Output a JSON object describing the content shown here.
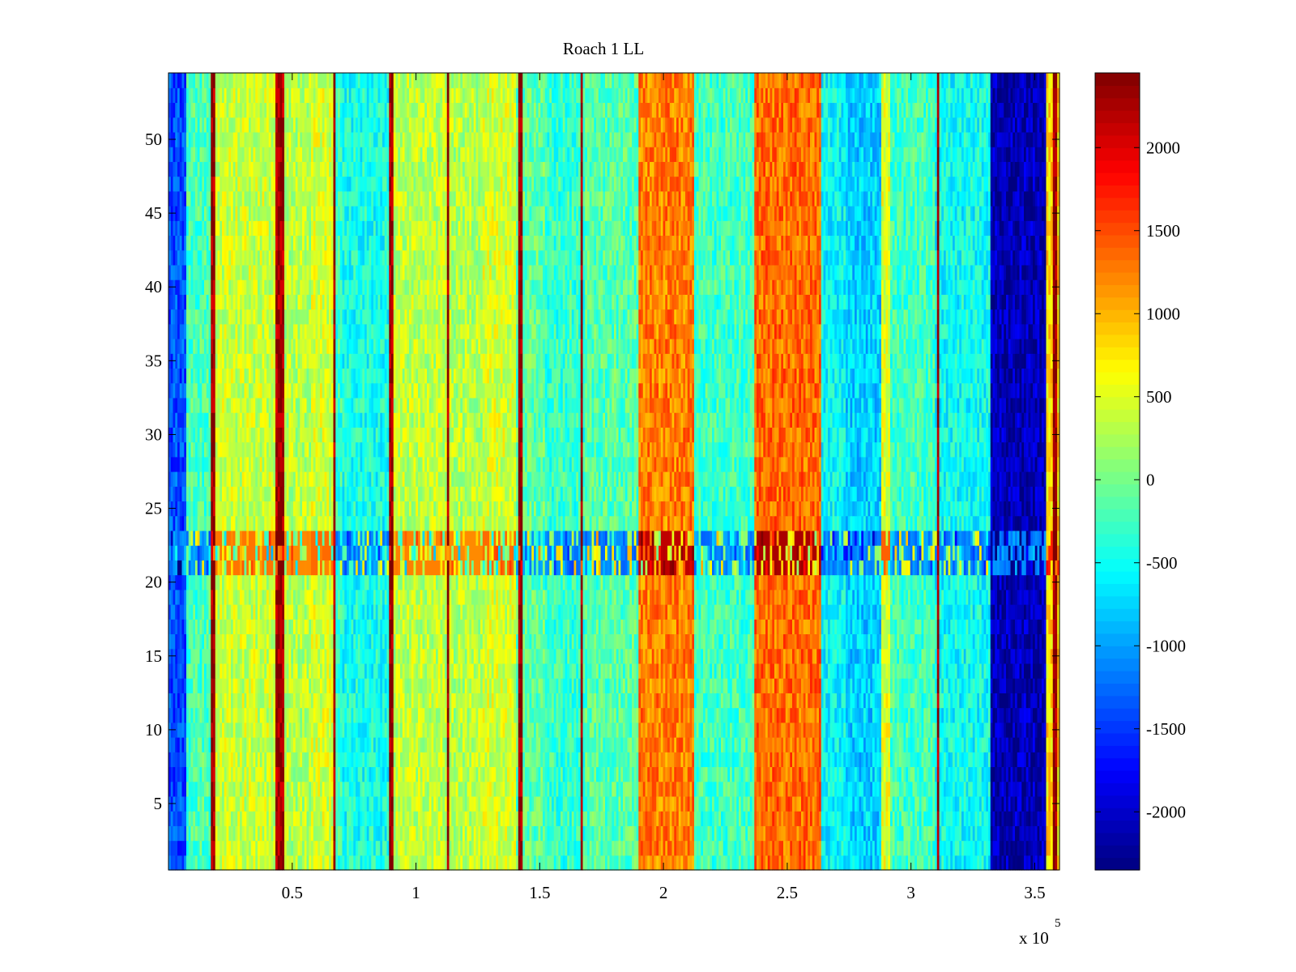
{
  "chart_data": {
    "type": "heatmap",
    "title": "Roach 1 LL",
    "xlabel": "",
    "ylabel": "",
    "x_exponent_label": "x 10",
    "x_exponent_power": "5",
    "xlim": [
      0,
      360000
    ],
    "ylim": [
      0.5,
      54.5
    ],
    "x_ticks": [
      {
        "value": 50000,
        "label": "0.5"
      },
      {
        "value": 100000,
        "label": "1"
      },
      {
        "value": 150000,
        "label": "1.5"
      },
      {
        "value": 200000,
        "label": "2"
      },
      {
        "value": 250000,
        "label": "2.5"
      },
      {
        "value": 300000,
        "label": "3"
      },
      {
        "value": 350000,
        "label": "3.5"
      }
    ],
    "y_ticks": [
      {
        "value": 5,
        "label": "5"
      },
      {
        "value": 10,
        "label": "10"
      },
      {
        "value": 15,
        "label": "15"
      },
      {
        "value": 20,
        "label": "20"
      },
      {
        "value": 25,
        "label": "25"
      },
      {
        "value": 30,
        "label": "30"
      },
      {
        "value": 35,
        "label": "35"
      },
      {
        "value": 40,
        "label": "40"
      },
      {
        "value": 45,
        "label": "45"
      },
      {
        "value": 50,
        "label": "50"
      }
    ],
    "rows": 54,
    "colormap": "jet",
    "clim": [
      -2350,
      2450
    ],
    "colorbar_ticks": [
      {
        "value": 2000,
        "label": "2000"
      },
      {
        "value": 1500,
        "label": "1500"
      },
      {
        "value": 1000,
        "label": "1000"
      },
      {
        "value": 500,
        "label": "500"
      },
      {
        "value": 0,
        "label": "0"
      },
      {
        "value": -500,
        "label": "-500"
      },
      {
        "value": -1000,
        "label": "-1000"
      },
      {
        "value": -1500,
        "label": "-1500"
      },
      {
        "value": -2000,
        "label": "-2000"
      }
    ],
    "column_bands": [
      {
        "x_start": 0,
        "x_end": 7000,
        "value": -1400
      },
      {
        "x_start": 7000,
        "x_end": 18000,
        "value": -200
      },
      {
        "x_start": 18000,
        "x_end": 43000,
        "value": 400
      },
      {
        "x_start": 43000,
        "x_end": 47000,
        "value": 2300
      },
      {
        "x_start": 47000,
        "x_end": 58000,
        "value": 300
      },
      {
        "x_start": 58000,
        "x_end": 67000,
        "value": 450
      },
      {
        "x_start": 67000,
        "x_end": 70000,
        "value": -300
      },
      {
        "x_start": 70000,
        "x_end": 90000,
        "value": -450
      },
      {
        "x_start": 90000,
        "x_end": 112000,
        "value": 350
      },
      {
        "x_start": 112000,
        "x_end": 127000,
        "value": 300
      },
      {
        "x_start": 127000,
        "x_end": 140000,
        "value": 450
      },
      {
        "x_start": 140000,
        "x_end": 152000,
        "value": -100
      },
      {
        "x_start": 152000,
        "x_end": 168000,
        "value": -300
      },
      {
        "x_start": 168000,
        "x_end": 190000,
        "value": -150
      },
      {
        "x_start": 190000,
        "x_end": 212000,
        "value": 1250
      },
      {
        "x_start": 212000,
        "x_end": 237000,
        "value": -250
      },
      {
        "x_start": 237000,
        "x_end": 264000,
        "value": 1350
      },
      {
        "x_start": 264000,
        "x_end": 274000,
        "value": -550
      },
      {
        "x_start": 274000,
        "x_end": 288000,
        "value": -750
      },
      {
        "x_start": 288000,
        "x_end": 292000,
        "value": 500
      },
      {
        "x_start": 292000,
        "x_end": 310000,
        "value": -250
      },
      {
        "x_start": 310000,
        "x_end": 332000,
        "value": -500
      },
      {
        "x_start": 332000,
        "x_end": 355000,
        "value": -2100
      },
      {
        "x_start": 355000,
        "x_end": 360000,
        "value": 800
      }
    ],
    "vertical_lines": [
      18000,
      45000,
      67000,
      90000,
      113000,
      142000,
      167000,
      311000,
      358000
    ],
    "horizontal_band": {
      "y_start": 20.5,
      "y_end": 23.5
    }
  }
}
